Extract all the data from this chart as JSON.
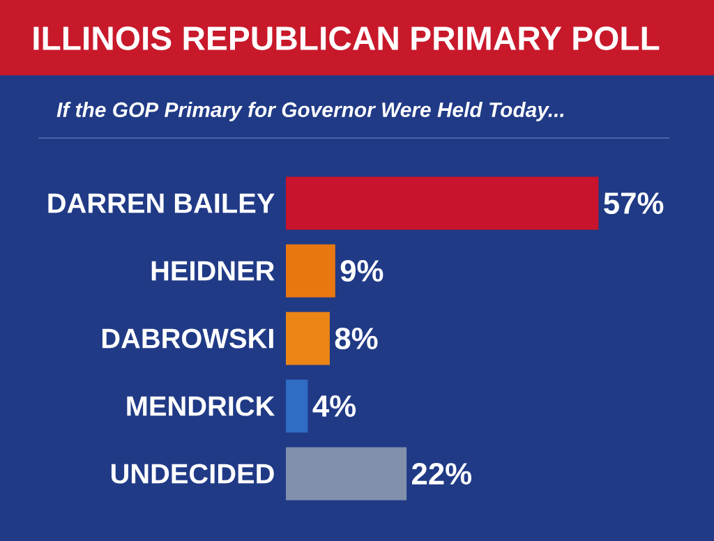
{
  "chart_data": {
    "type": "bar",
    "orientation": "horizontal",
    "title": "ILLINOIS REPUBLICAN PRIMARY POLL",
    "subtitle": "If the GOP Primary for Governor Were Held Today...",
    "categories": [
      "DARREN BAILEY",
      "HEIDNER",
      "DABROWSKI",
      "MENDRICK",
      "UNDECIDED"
    ],
    "values": [
      57,
      9,
      8,
      4,
      22
    ],
    "colors": [
      "#c8142c",
      "#e9770f",
      "#eb8516",
      "#2f6cc4",
      "#8190ab"
    ],
    "value_labels": [
      "57%",
      "9%",
      "8%",
      "4%",
      "22%"
    ],
    "tick_labels": "y"
  }
}
